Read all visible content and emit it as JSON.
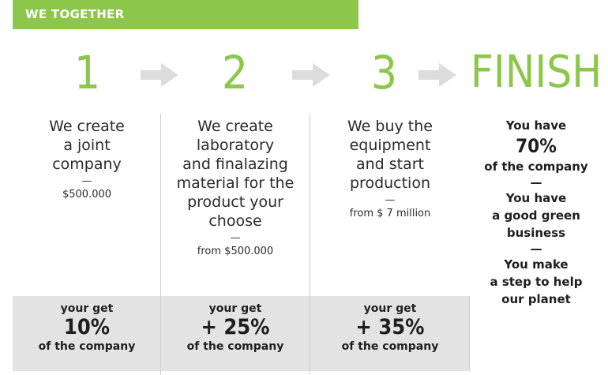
{
  "colors": {
    "accent": "#8cc64b",
    "arrow": "#dcdcdc",
    "gray_box": "#e3e3e3"
  },
  "header": {
    "title": "WE TOGETHER"
  },
  "steps": [
    {
      "number": "1",
      "desc": [
        "We create",
        "a joint",
        "company"
      ],
      "dash": "—",
      "amount": "$500.000",
      "result": {
        "get": "your get",
        "pct": "10%",
        "of": "of the company"
      }
    },
    {
      "number": "2",
      "desc": [
        "We create",
        "laboratory",
        "and finalazing",
        "material for the",
        "product your",
        "choose"
      ],
      "dash": "—",
      "amount": "from $500.000",
      "result": {
        "get": "your get",
        "pct": "+ 25%",
        "of": "of the company"
      }
    },
    {
      "number": "3",
      "desc": [
        "We buy the",
        "equipment",
        "and start",
        "production"
      ],
      "dash": "—",
      "amount": "from $ 7 million",
      "result": {
        "get": "your get",
        "pct": "+ 35%",
        "of": "of the company"
      }
    }
  ],
  "finish": {
    "title": "FINISH",
    "line1": "You have",
    "pct": "70%",
    "line2": "of the company",
    "dash": "—",
    "line3": [
      "You have",
      "a good green",
      "business"
    ],
    "dash2": "—",
    "line4": [
      "You make",
      "a step to help",
      "our planet"
    ]
  }
}
